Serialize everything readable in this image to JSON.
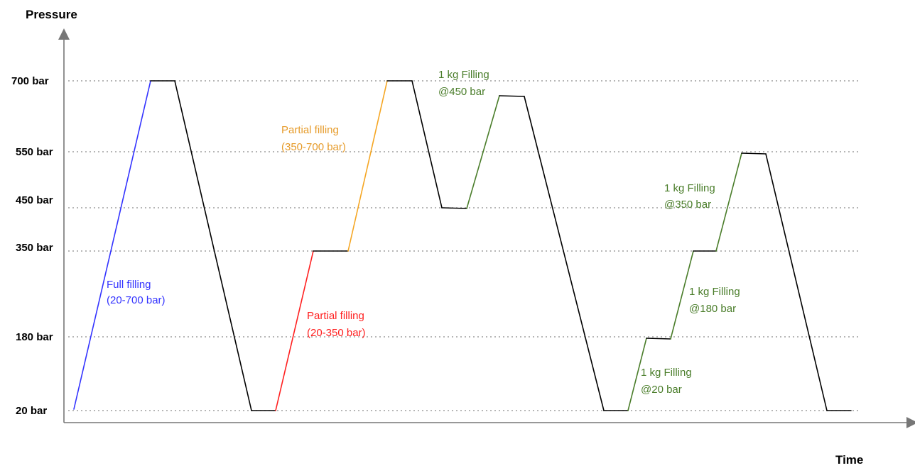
{
  "diagram": {
    "y_axis_title": "Pressure",
    "x_axis_title": "Time",
    "levels": [
      {
        "label": "700 bar",
        "value": 700
      },
      {
        "label": "550 bar",
        "value": 550
      },
      {
        "label": "450 bar",
        "value": 450
      },
      {
        "label": "350 bar",
        "value": 350
      },
      {
        "label": "180 bar",
        "value": 180
      },
      {
        "label": "20 bar",
        "value": 20
      }
    ],
    "colors": {
      "full": "#3333ff",
      "partial_20_350": "#ff2020",
      "partial_350_700": "#f5a623",
      "kg_filling": "#4a7d2a",
      "discharge": "#000000"
    },
    "annotations": [
      {
        "lines": [
          "Full filling",
          "(20-700 bar)"
        ],
        "color": "#3333ff"
      },
      {
        "lines": [
          "Partial filling",
          "(20-350 bar)"
        ],
        "color": "#ff2020"
      },
      {
        "lines": [
          "Partial filling",
          "(350-700 bar)"
        ],
        "color": "#e69b2a"
      },
      {
        "lines": [
          "1 kg Filling",
          "@450 bar"
        ],
        "color": "#4a7d2a"
      },
      {
        "lines": [
          "1 kg Filling",
          "@350 bar"
        ],
        "color": "#4a7d2a"
      },
      {
        "lines": [
          "1 kg Filling",
          "@180 bar"
        ],
        "color": "#4a7d2a"
      },
      {
        "lines": [
          "1 kg Filling",
          "@20 bar"
        ],
        "color": "#4a7d2a"
      }
    ]
  }
}
